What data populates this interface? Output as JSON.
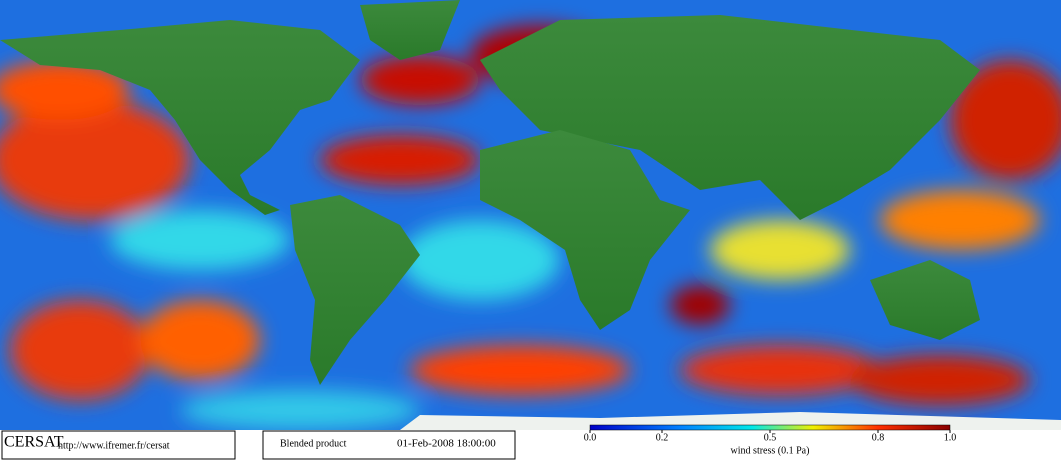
{
  "header": {
    "logo": "CERSAT",
    "url": "http://www.ifremer.fr/cersat",
    "product": "Blended product",
    "date": "01-Feb-2008 18:00:00"
  },
  "colorbar": {
    "label": "wind stress (0.1 Pa)",
    "lim": [
      0,
      1
    ],
    "ticks": [
      {
        "value": 0,
        "label": "0.0"
      },
      0.2,
      0.5,
      0.8,
      {
        "value": 1,
        "label": "1.0"
      }
    ]
  }
}
